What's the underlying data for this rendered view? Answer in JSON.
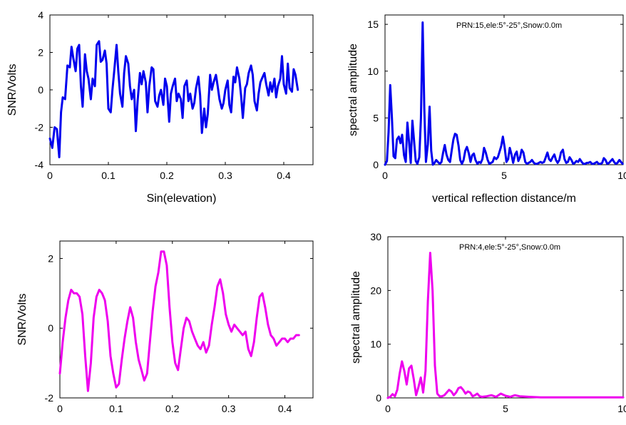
{
  "chart_data": [
    {
      "type": "line",
      "xlabel": "Sin(elevation)",
      "ylabel": "SNR/Volts",
      "xlim": [
        0,
        0.45
      ],
      "ylim": [
        -4,
        4
      ],
      "xticks": [
        0,
        0.1,
        0.2,
        0.3,
        0.4
      ],
      "yticks": [
        -4,
        -2,
        0,
        2,
        4
      ],
      "xtick_labels": [
        "0",
        "0.1",
        "0.2",
        "0.3",
        "0.4"
      ],
      "ytick_labels": [
        "-4",
        "-2",
        "0",
        "2",
        "4"
      ],
      "color": "#0000ee",
      "series": [
        {
          "x": [
            0.0,
            0.004,
            0.008,
            0.012,
            0.016,
            0.019,
            0.022,
            0.026,
            0.03,
            0.034,
            0.037,
            0.04,
            0.044,
            0.047,
            0.05,
            0.053,
            0.056,
            0.06,
            0.063,
            0.066,
            0.07,
            0.073,
            0.077,
            0.08,
            0.084,
            0.087,
            0.09,
            0.094,
            0.097,
            0.1,
            0.104,
            0.107,
            0.11,
            0.114,
            0.117,
            0.12,
            0.124,
            0.127,
            0.13,
            0.134,
            0.137,
            0.14,
            0.144,
            0.147,
            0.15,
            0.154,
            0.157,
            0.16,
            0.164,
            0.167,
            0.17,
            0.174,
            0.177,
            0.18,
            0.184,
            0.187,
            0.19,
            0.194,
            0.197,
            0.2,
            0.204,
            0.207,
            0.21,
            0.214,
            0.217,
            0.22,
            0.224,
            0.227,
            0.23,
            0.234,
            0.237,
            0.24,
            0.244,
            0.247,
            0.25,
            0.254,
            0.257,
            0.26,
            0.264,
            0.267,
            0.27,
            0.274,
            0.277,
            0.28,
            0.284,
            0.287,
            0.29,
            0.294,
            0.297,
            0.3,
            0.304,
            0.307,
            0.31,
            0.314,
            0.317,
            0.32,
            0.324,
            0.327,
            0.33,
            0.334,
            0.337,
            0.34,
            0.344,
            0.347,
            0.35,
            0.354,
            0.357,
            0.36,
            0.364,
            0.367,
            0.37,
            0.374,
            0.377,
            0.38,
            0.384,
            0.387,
            0.39,
            0.394,
            0.397,
            0.4,
            0.404,
            0.407,
            0.41,
            0.414,
            0.417,
            0.42,
            0.424
          ],
          "y": [
            -2.6,
            -3.1,
            -2.0,
            -2.1,
            -3.6,
            -1.2,
            -0.4,
            -0.5,
            1.3,
            1.2,
            2.3,
            1.7,
            1.0,
            2.2,
            2.4,
            0.2,
            -0.9,
            1.9,
            1.0,
            0.6,
            -0.5,
            0.6,
            0.2,
            2.4,
            2.6,
            1.5,
            1.6,
            2.1,
            1.4,
            -1.0,
            -1.2,
            0.0,
            1.0,
            2.4,
            1.0,
            -0.2,
            -0.9,
            0.9,
            1.8,
            1.4,
            0.2,
            -0.5,
            0.0,
            -2.2,
            -0.6,
            0.9,
            0.3,
            1.0,
            0.4,
            -1.2,
            0.2,
            1.2,
            1.1,
            -0.6,
            -0.9,
            -0.3,
            0.0,
            -0.8,
            0.6,
            0.2,
            -1.7,
            -0.2,
            0.2,
            0.6,
            -0.6,
            -0.2,
            -0.5,
            -1.5,
            0.2,
            0.5,
            -0.6,
            -0.2,
            -1.0,
            -0.7,
            0.1,
            0.7,
            -0.3,
            -2.3,
            -1.0,
            -2.0,
            -1.3,
            0.8,
            0.0,
            0.4,
            0.8,
            0.2,
            -0.5,
            -1.0,
            -0.7,
            0.0,
            0.5,
            -0.8,
            -1.2,
            0.7,
            0.4,
            1.2,
            0.6,
            -0.3,
            -1.5,
            0.1,
            0.3,
            0.9,
            1.3,
            0.8,
            -0.6,
            -1.1,
            -0.2,
            0.4,
            0.7,
            0.9,
            0.3,
            -0.3,
            0.4,
            -0.1,
            0.6,
            -0.4,
            0.2,
            0.6,
            1.8,
            0.3,
            -0.2,
            1.4,
            0.1,
            -0.1,
            1.1,
            0.8,
            0.0
          ]
        }
      ]
    },
    {
      "type": "line",
      "xlabel": "vertical reflection distance/m",
      "ylabel": "spectral amplitude",
      "annotation": "PRN:15,ele:5°-25°,Snow:0.0m",
      "xlim": [
        0,
        10
      ],
      "ylim": [
        0,
        16
      ],
      "xticks": [
        0,
        5,
        10
      ],
      "yticks": [
        0,
        5,
        10,
        15
      ],
      "xtick_labels": [
        "0",
        "5",
        "10"
      ],
      "ytick_labels": [
        "0",
        "5",
        "10",
        "15"
      ],
      "color": "#0000ee",
      "series": [
        {
          "x": [
            0.0,
            0.08,
            0.15,
            0.22,
            0.29,
            0.36,
            0.43,
            0.5,
            0.58,
            0.65,
            0.72,
            0.8,
            0.87,
            0.94,
            1.01,
            1.08,
            1.15,
            1.22,
            1.29,
            1.36,
            1.44,
            1.51,
            1.58,
            1.65,
            1.72,
            1.8,
            1.87,
            1.94,
            2.01,
            2.08,
            2.15,
            2.22,
            2.3,
            2.37,
            2.44,
            2.51,
            2.58,
            2.66,
            2.73,
            2.8,
            2.87,
            2.94,
            3.01,
            3.09,
            3.16,
            3.23,
            3.3,
            3.37,
            3.44,
            3.52,
            3.59,
            3.66,
            3.73,
            3.8,
            3.88,
            3.95,
            4.02,
            4.09,
            4.16,
            4.23,
            4.31,
            4.38,
            4.45,
            4.52,
            4.59,
            4.67,
            4.74,
            4.81,
            4.88,
            4.95,
            5.02,
            5.1,
            5.17,
            5.24,
            5.31,
            5.38,
            5.46,
            5.53,
            5.6,
            5.67,
            5.74,
            5.81,
            5.89,
            5.96,
            6.03,
            6.1,
            6.17,
            6.25,
            6.32,
            6.39,
            6.46,
            6.53,
            6.6,
            6.68,
            6.75,
            6.82,
            6.89,
            6.96,
            7.04,
            7.11,
            7.18,
            7.25,
            7.32,
            7.39,
            7.47,
            7.54,
            7.61,
            7.68,
            7.75,
            7.83,
            7.9,
            7.97,
            8.04,
            8.11,
            8.18,
            8.26,
            8.33,
            8.4,
            8.47,
            8.54,
            8.62,
            8.69,
            8.76,
            8.83,
            8.9,
            8.97,
            9.05,
            9.12,
            9.19,
            9.26,
            9.33,
            9.41,
            9.48,
            9.55,
            9.62,
            9.69,
            9.76,
            9.84,
            9.91,
            9.98
          ],
          "y": [
            0.0,
            0.4,
            3.5,
            8.5,
            5.0,
            0.9,
            0.7,
            2.7,
            3.0,
            2.3,
            3.2,
            1.0,
            0.3,
            4.5,
            2.5,
            0.2,
            4.7,
            2.6,
            0.4,
            0.1,
            0.8,
            5.0,
            15.2,
            6.0,
            0.3,
            2.2,
            6.2,
            1.5,
            0.0,
            0.2,
            0.5,
            0.3,
            0.1,
            0.3,
            1.3,
            2.1,
            1.1,
            0.5,
            0.3,
            1.5,
            2.7,
            3.3,
            3.2,
            2.0,
            0.5,
            0.1,
            0.5,
            1.5,
            1.9,
            1.2,
            0.3,
            1.0,
            1.2,
            0.5,
            0.1,
            0.3,
            0.2,
            0.6,
            1.8,
            1.3,
            0.5,
            0.1,
            0.2,
            0.3,
            0.8,
            0.6,
            0.8,
            1.4,
            2.0,
            3.0,
            1.9,
            0.3,
            0.6,
            1.8,
            1.1,
            0.2,
            1.1,
            1.4,
            0.4,
            0.8,
            1.6,
            1.3,
            0.3,
            0.1,
            0.2,
            0.3,
            0.5,
            0.2,
            0.1,
            0.1,
            0.2,
            0.3,
            0.2,
            0.3,
            0.8,
            1.3,
            0.6,
            0.4,
            0.8,
            1.1,
            0.5,
            0.2,
            0.5,
            1.3,
            1.6,
            0.6,
            0.2,
            0.3,
            0.8,
            0.5,
            0.1,
            0.2,
            0.4,
            0.3,
            0.6,
            0.3,
            0.1,
            0.1,
            0.2,
            0.2,
            0.3,
            0.1,
            0.1,
            0.2,
            0.3,
            0.1,
            0.1,
            0.2,
            0.7,
            0.5,
            0.1,
            0.2,
            0.4,
            0.6,
            0.3,
            0.1,
            0.2,
            0.5,
            0.3,
            0.1
          ]
        }
      ]
    },
    {
      "type": "line",
      "xlabel": "Sin(elevation)",
      "ylabel": "SNR/Volts",
      "xlim": [
        0,
        0.45
      ],
      "ylim": [
        -2,
        2.5
      ],
      "xticks": [
        0,
        0.1,
        0.2,
        0.3,
        0.4
      ],
      "yticks": [
        -2,
        0,
        2
      ],
      "xtick_labels": [
        "0",
        "0.1",
        "0.2",
        "0.3",
        "0.4"
      ],
      "ytick_labels": [
        "-2",
        "0",
        "2"
      ],
      "color": "#ee00ee",
      "series": [
        {
          "x": [
            0.0,
            0.005,
            0.01,
            0.015,
            0.02,
            0.025,
            0.03,
            0.035,
            0.04,
            0.045,
            0.05,
            0.055,
            0.06,
            0.065,
            0.07,
            0.075,
            0.08,
            0.085,
            0.09,
            0.095,
            0.1,
            0.105,
            0.11,
            0.115,
            0.12,
            0.125,
            0.13,
            0.135,
            0.14,
            0.145,
            0.15,
            0.155,
            0.16,
            0.165,
            0.17,
            0.175,
            0.18,
            0.185,
            0.19,
            0.195,
            0.2,
            0.205,
            0.21,
            0.215,
            0.22,
            0.225,
            0.23,
            0.235,
            0.24,
            0.245,
            0.25,
            0.255,
            0.26,
            0.265,
            0.27,
            0.275,
            0.28,
            0.285,
            0.29,
            0.295,
            0.3,
            0.305,
            0.31,
            0.315,
            0.32,
            0.325,
            0.33,
            0.335,
            0.34,
            0.345,
            0.35,
            0.355,
            0.36,
            0.365,
            0.37,
            0.375,
            0.38,
            0.385,
            0.39,
            0.395,
            0.4,
            0.405,
            0.41,
            0.415,
            0.42,
            0.425
          ],
          "y": [
            -1.3,
            -0.4,
            0.3,
            0.8,
            1.1,
            1.0,
            1.0,
            0.9,
            0.4,
            -0.8,
            -1.8,
            -1.0,
            0.3,
            0.9,
            1.1,
            1.0,
            0.8,
            0.2,
            -0.8,
            -1.3,
            -1.7,
            -1.6,
            -0.9,
            -0.3,
            0.2,
            0.6,
            0.3,
            -0.4,
            -0.9,
            -1.2,
            -1.5,
            -1.3,
            -0.4,
            0.5,
            1.2,
            1.6,
            2.2,
            2.2,
            1.8,
            0.6,
            -0.4,
            -1.0,
            -1.2,
            -0.6,
            0.0,
            0.3,
            0.2,
            -0.1,
            -0.3,
            -0.5,
            -0.6,
            -0.4,
            -0.7,
            -0.5,
            0.1,
            0.6,
            1.2,
            1.4,
            1.0,
            0.4,
            0.1,
            -0.1,
            0.1,
            0.0,
            -0.1,
            -0.2,
            -0.1,
            -0.6,
            -0.8,
            -0.4,
            0.3,
            0.9,
            1.0,
            0.6,
            0.1,
            -0.2,
            -0.3,
            -0.5,
            -0.4,
            -0.3,
            -0.3,
            -0.4,
            -0.3,
            -0.3,
            -0.2,
            -0.2
          ]
        }
      ]
    },
    {
      "type": "line",
      "xlabel": "vertical reflection distance/m",
      "ylabel": "spectral amplitude",
      "annotation": "PRN:4,ele:5°-25°,Snow:0.0m",
      "xlim": [
        0,
        10
      ],
      "ylim": [
        0,
        30
      ],
      "xticks": [
        0,
        5,
        10
      ],
      "yticks": [
        0,
        10,
        20,
        30
      ],
      "xtick_labels": [
        "0",
        "5",
        "10"
      ],
      "ytick_labels": [
        "0",
        "10",
        "20",
        "30"
      ],
      "color": "#ee00ee",
      "series": [
        {
          "x": [
            0.0,
            0.1,
            0.2,
            0.3,
            0.4,
            0.5,
            0.6,
            0.7,
            0.8,
            0.9,
            1.0,
            1.1,
            1.2,
            1.3,
            1.4,
            1.5,
            1.6,
            1.7,
            1.8,
            1.9,
            2.0,
            2.1,
            2.2,
            2.3,
            2.4,
            2.5,
            2.6,
            2.7,
            2.8,
            2.9,
            3.0,
            3.1,
            3.2,
            3.3,
            3.4,
            3.5,
            3.6,
            3.7,
            3.8,
            3.9,
            4.0,
            4.2,
            4.4,
            4.6,
            4.8,
            5.0,
            5.2,
            5.4,
            5.6,
            6.0,
            6.5,
            7.0,
            7.5,
            8.0,
            8.5,
            9.0,
            9.5,
            10.0
          ],
          "y": [
            0.0,
            0.2,
            0.7,
            0.3,
            1.5,
            4.5,
            6.8,
            5.0,
            2.5,
            5.5,
            6.0,
            3.5,
            0.5,
            2.0,
            3.8,
            1.0,
            5.0,
            18.0,
            27.0,
            20.0,
            6.0,
            0.8,
            0.3,
            0.3,
            0.5,
            1.0,
            1.5,
            1.2,
            0.5,
            1.0,
            1.8,
            2.0,
            1.5,
            0.8,
            1.2,
            1.0,
            0.3,
            0.5,
            0.8,
            0.3,
            0.2,
            0.3,
            0.5,
            0.2,
            0.8,
            0.4,
            0.2,
            0.5,
            0.3,
            0.2,
            0.1,
            0.1,
            0.1,
            0.1,
            0.1,
            0.1,
            0.1,
            0.1
          ]
        }
      ]
    }
  ]
}
